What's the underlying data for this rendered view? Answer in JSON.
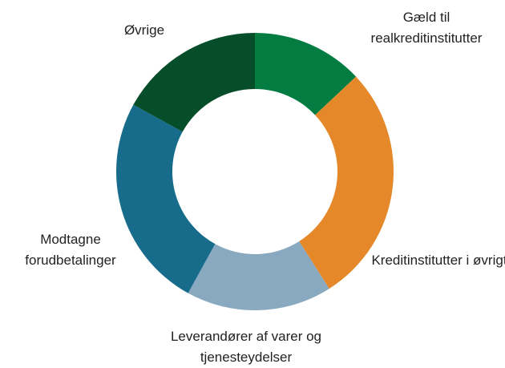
{
  "chart_data": {
    "type": "donut",
    "categories": [
      "Gæld til realkreditinstitutter",
      "Kreditinstitutter i øvrigt",
      "Leverandører af varer og tjenesteydelser",
      "Modtagne forudbetalinger",
      "Øvrige"
    ],
    "values": [
      13,
      28,
      17,
      25,
      17
    ],
    "colors": [
      "#037c41",
      "#e5882a",
      "#88a9bf",
      "#176b8b",
      "#054e29"
    ]
  }
}
